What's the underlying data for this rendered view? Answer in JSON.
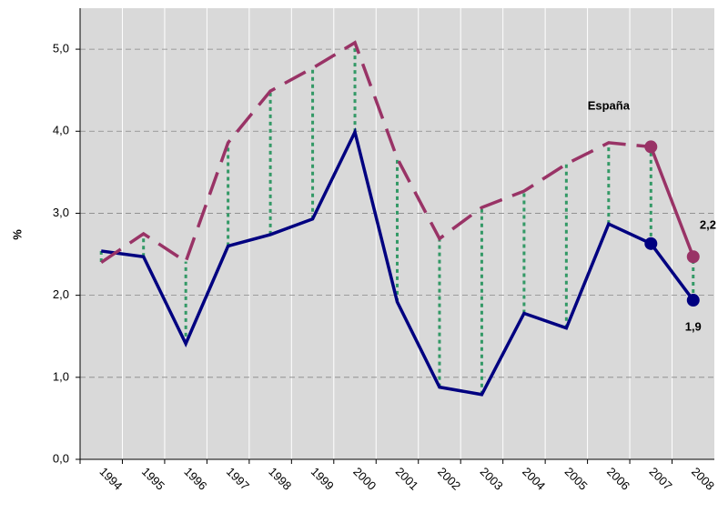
{
  "chart_data": {
    "type": "line",
    "y_label": "%",
    "categories": [
      "1994",
      "1995",
      "1996",
      "1997",
      "1998",
      "1999",
      "2000",
      "2001",
      "2002",
      "2003",
      "2004",
      "2005",
      "2006",
      "2007",
      "2008"
    ],
    "series": [
      {
        "color": "#000080",
        "dashed": false,
        "values": [
          2.54,
          2.47,
          1.41,
          2.6,
          2.74,
          2.93,
          3.99,
          1.92,
          0.88,
          0.79,
          1.78,
          1.6,
          2.87,
          2.63,
          1.94
        ]
      },
      {
        "name": "España",
        "color": "#993366",
        "dashed": true,
        "values": [
          2.4,
          2.75,
          2.41,
          3.86,
          4.49,
          4.77,
          5.08,
          3.67,
          2.69,
          3.07,
          3.27,
          3.6,
          3.86,
          3.81,
          2.47
        ]
      }
    ],
    "annotations": [
      {
        "text": "2,2",
        "color": "#993366"
      },
      {
        "text": "1,9",
        "color": "#333399"
      }
    ],
    "drop_lines": true,
    "drop_line_color": "#339966",
    "ylim": [
      0,
      5.5
    ],
    "yticks": [
      {
        "value": 0,
        "label": "0,0"
      },
      {
        "value": 1,
        "label": "1,0"
      },
      {
        "value": 2,
        "label": "2,0"
      },
      {
        "value": 3,
        "label": "3,0"
      },
      {
        "value": 4,
        "label": "4,0"
      },
      {
        "value": 5,
        "label": "5,0"
      }
    ],
    "grid": true,
    "background": "#d9d9d9"
  }
}
